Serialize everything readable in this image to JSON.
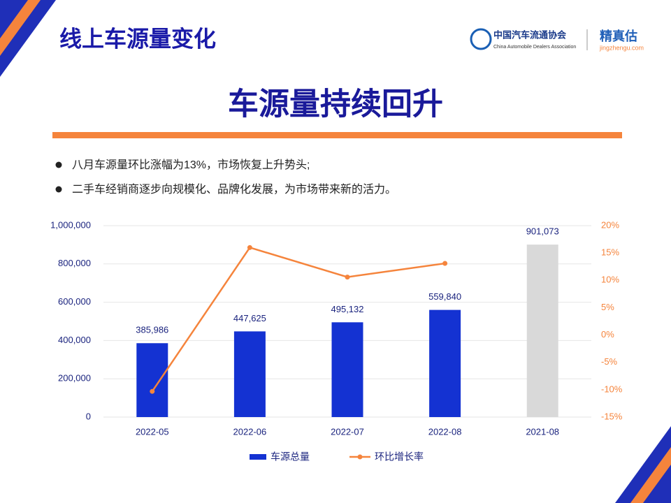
{
  "header": {
    "title": "线上车源量变化",
    "cada_cn": "中国汽车流通协会",
    "cada_en": "China Automobile Dealers Association",
    "jzg_name": "精真估",
    "jzg_url": "jingzhengu.com"
  },
  "headline": "车源量持续回升",
  "bullets": [
    "八月车源量环比涨幅为13%，市场恢复上升势头;",
    "二手车经销商逐步向规模化、品牌化发展，为市场带来新的活力。"
  ],
  "chart_data": {
    "type": "bar-line",
    "categories": [
      "2022-05",
      "2022-06",
      "2022-07",
      "2022-08",
      "2021-08"
    ],
    "series": [
      {
        "name": "车源总量",
        "type": "bar",
        "color": "#1432d2",
        "bar_colors": [
          "#1432d2",
          "#1432d2",
          "#1432d2",
          "#1432d2",
          "#d9d9d9"
        ],
        "values": [
          385986,
          447625,
          495132,
          559840,
          901073
        ],
        "value_labels": [
          "385,986",
          "447,625",
          "495,132",
          "559,840",
          "901,073"
        ]
      },
      {
        "name": "环比增长率",
        "type": "line",
        "axis": "y2",
        "color": "#f5843c",
        "values": [
          -10.3,
          16.0,
          10.6,
          13.1,
          null
        ]
      }
    ],
    "ylim": [
      0,
      1000000
    ],
    "yticks": [
      0,
      {
        "value": 200000,
        "label": "200,000"
      },
      {
        "value": 400000,
        "label": "400,000"
      },
      {
        "value": 600000,
        "label": "600,000"
      },
      {
        "value": 800000,
        "label": "800,000"
      },
      {
        "value": 1000000,
        "label": "1,000,000"
      }
    ],
    "y2lim": [
      -15,
      20
    ],
    "y2ticks": [
      {
        "value": -15,
        "label": "-15%"
      },
      {
        "value": -10,
        "label": "-10%"
      },
      {
        "value": -5,
        "label": "-5%"
      },
      {
        "value": 0,
        "label": "0%"
      },
      {
        "value": 5,
        "label": "5%"
      },
      {
        "value": 10,
        "label": "10%"
      },
      {
        "value": 15,
        "label": "15%"
      },
      {
        "value": 20,
        "label": "20%"
      }
    ],
    "grid": true,
    "legend": "bottom"
  }
}
